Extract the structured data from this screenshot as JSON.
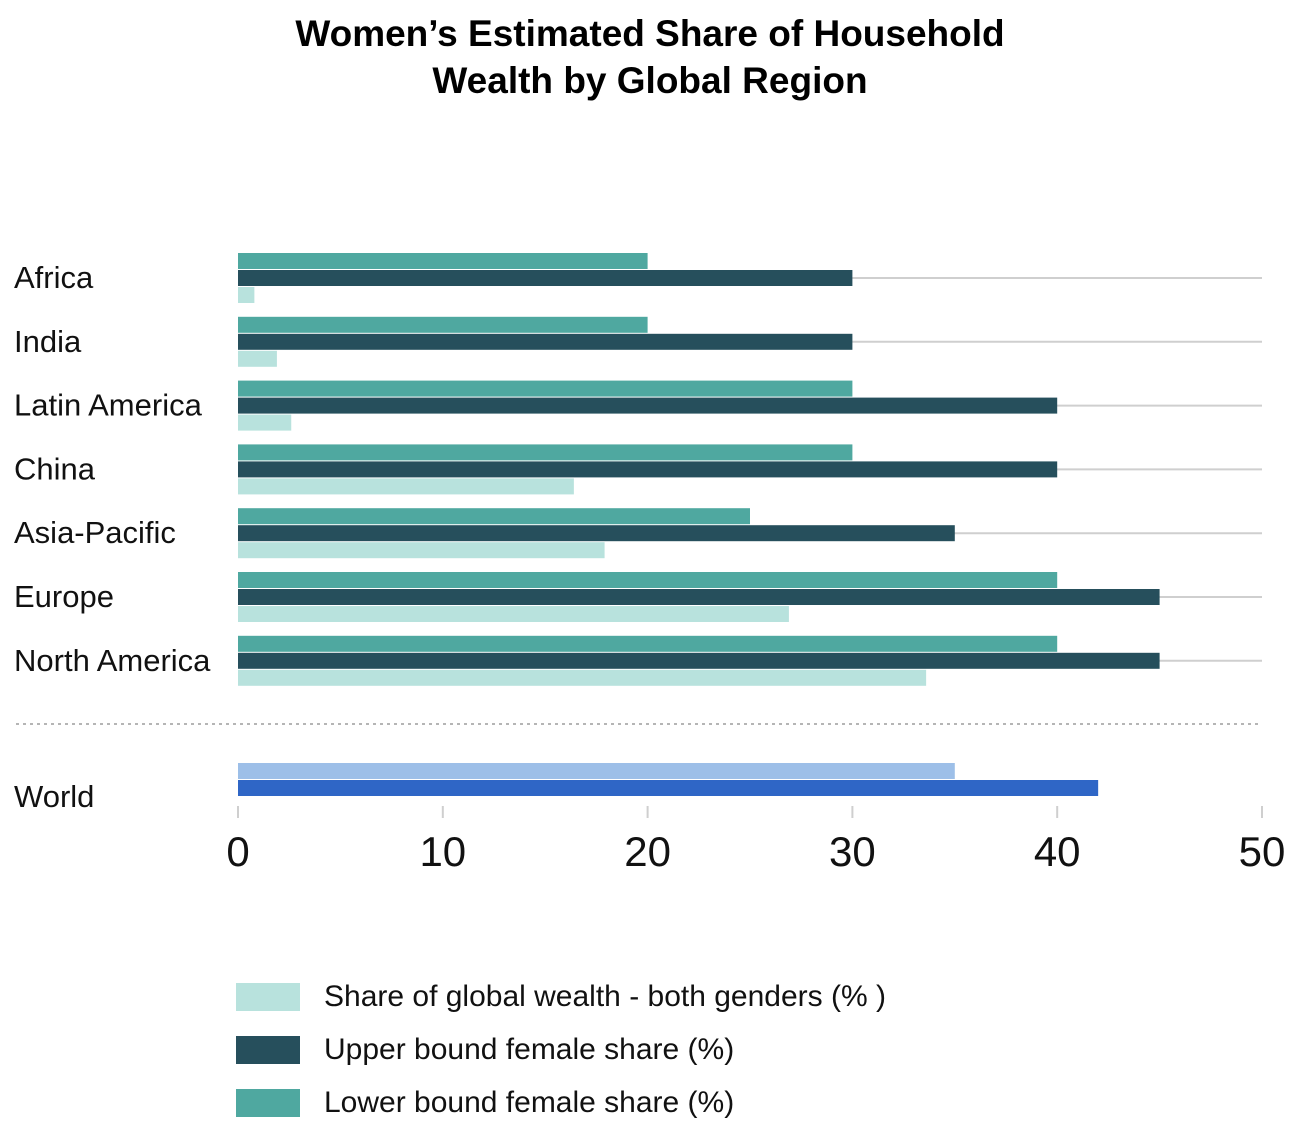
{
  "chart_data": {
    "type": "bar",
    "orientation": "horizontal",
    "title": "Women’s Estimated Share of Household Wealth by Global Region",
    "title_lines": [
      "Women’s Estimated Share of Household",
      "Wealth by Global Region"
    ],
    "categories": [
      "Africa",
      "India",
      "Latin America",
      "China",
      "Asia-Pacific",
      "Europe",
      "North America"
    ],
    "series": [
      {
        "name": "Lower bound female share (%)",
        "color": "#4fa8a0",
        "values": [
          20,
          20,
          30,
          30,
          25,
          40,
          40
        ]
      },
      {
        "name": "Upper bound female share (%)",
        "color": "#264f5c",
        "values": [
          30,
          30,
          40,
          40,
          35,
          45,
          45
        ]
      },
      {
        "name": "Share of global wealth - both genders (% )",
        "color": "#b8e2dd",
        "values": [
          0.8,
          1.9,
          2.6,
          16.4,
          17.9,
          26.9,
          33.6
        ]
      }
    ],
    "world": {
      "label": "World",
      "series": [
        {
          "color": "#9dbfe8",
          "value": 35
        },
        {
          "color": "#2f66c6",
          "value": 42
        }
      ]
    },
    "xlim": [
      0,
      50
    ],
    "xticks": [
      "0",
      "10",
      "20",
      "30",
      "40",
      "50"
    ],
    "grid": true,
    "legend_position": "bottom",
    "legend": [
      {
        "label": "Share of global wealth - both genders (% )",
        "color": "#b8e2dd"
      },
      {
        "label": "Upper bound female share (%)",
        "color": "#264f5c"
      },
      {
        "label": "Lower bound female share (%)",
        "color": "#4fa8a0"
      }
    ]
  }
}
